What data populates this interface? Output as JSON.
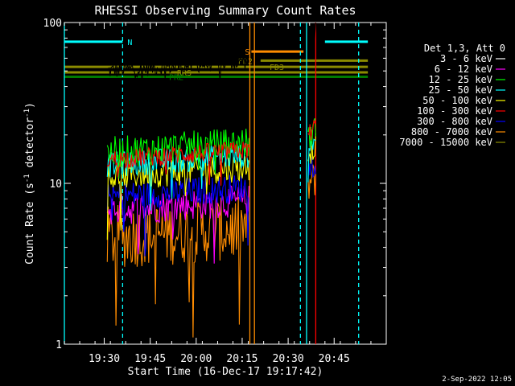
{
  "chart_data": {
    "type": "line",
    "title": "RHESSI Observing Summary Count Rates",
    "xlabel": "Start Time (16-Dec-17 19:17:42)",
    "ylabel_main": "Count Rate (s",
    "ylabel_sup": "-1",
    "ylabel_mid": " detector",
    "ylabel_sup2": "-1",
    "ylabel_end": ")",
    "x_range_min": [
      0,
      105
    ],
    "x_ticks": [
      {
        "min": 13,
        "label": "19:30"
      },
      {
        "min": 28,
        "label": "19:45"
      },
      {
        "min": 43,
        "label": "20:00"
      },
      {
        "min": 58,
        "label": "20:15"
      },
      {
        "min": 73,
        "label": "20:30"
      },
      {
        "min": 88,
        "label": "20:45"
      }
    ],
    "y_scale": "log",
    "y_range": [
      1,
      100
    ],
    "y_ticks": [
      {
        "v": 1,
        "label": "1"
      },
      {
        "v": 10,
        "label": "10"
      },
      {
        "v": 100,
        "label": "100"
      }
    ],
    "legend": {
      "placement": "right",
      "header": "Det 1,3, Att 0",
      "entries": [
        {
          "label": "3 - 6 keV",
          "color": "#000000"
        },
        {
          "label": "6 - 12 keV",
          "color": "#ff00ff"
        },
        {
          "label": "12 - 25 keV",
          "color": "#00ff00"
        },
        {
          "label": "25 - 50 keV",
          "color": "#00ffff"
        },
        {
          "label": "50 - 100 keV",
          "color": "#ffff00"
        },
        {
          "label": "100 - 300 keV",
          "color": "#ff0000"
        },
        {
          "label": "300 - 800 keV",
          "color": "#0000ff"
        },
        {
          "label": "800 - 7000 keV",
          "color": "#ff8c00"
        },
        {
          "label": "7000 - 15000 keV",
          "color": "#8b8b00"
        }
      ]
    },
    "flag_bars": [
      {
        "label": "N",
        "color": "#00ffff",
        "segments": [
          [
            0,
            19
          ],
          [
            85,
            99
          ]
        ],
        "y": 76
      },
      {
        "label": "S",
        "color": "#ff8c00",
        "segments": [
          [
            61,
            78
          ]
        ],
        "y": 66
      },
      {
        "label": "FD2",
        "color": "#8b8b00",
        "segments": [
          [
            64,
            99
          ]
        ],
        "y": 58
      },
      {
        "label": "FD3",
        "color": "#8b8b00",
        "segments": [
          [
            0,
            99
          ]
        ],
        "y": 53
      },
      {
        "label": "RRS",
        "color": "#8b8b00",
        "segments": [
          [
            0,
            99
          ]
        ],
        "y": 49
      },
      {
        "label": "PRE",
        "color": "#007a00",
        "segments": [
          [
            0,
            99
          ]
        ],
        "y": 46
      }
    ],
    "vlines": [
      {
        "min": 0,
        "color": "#00ffff",
        "style": "solid"
      },
      {
        "min": 19,
        "color": "#00ffff",
        "style": "dashed"
      },
      {
        "min": 60.5,
        "color": "#ff8c00",
        "style": "solid"
      },
      {
        "min": 62,
        "color": "#ff8c00",
        "style": "solid"
      },
      {
        "min": 77,
        "color": "#00ffff",
        "style": "dashed"
      },
      {
        "min": 79,
        "color": "#00ffff",
        "style": "solid"
      },
      {
        "min": 82,
        "color": "#ff0000",
        "style": "solid"
      },
      {
        "min": 96,
        "color": "#00ffff",
        "style": "dashed"
      }
    ],
    "series_segments": [
      {
        "color": "#000000",
        "segments": [
          [
            14,
            60.2,
            50,
            0.05
          ],
          [
            80,
            82,
            80,
            0.05
          ]
        ]
      },
      {
        "color": "#ff8c00",
        "segments": [
          [
            14,
            60.2,
            4.6,
            0.2
          ],
          [
            79.5,
            82,
            9.5,
            0.12
          ]
        ]
      },
      {
        "color": "#ff00ff",
        "segments": [
          [
            14,
            60.2,
            6.8,
            0.1
          ]
        ]
      },
      {
        "color": "#0000ff",
        "segments": [
          [
            14,
            60.2,
            8.2,
            0.09
          ],
          [
            79.5,
            82,
            12,
            0.08
          ]
        ]
      },
      {
        "color": "#ffff00",
        "segments": [
          [
            14,
            60.2,
            11,
            0.09
          ],
          [
            79.5,
            82,
            15,
            0.08
          ]
        ]
      },
      {
        "color": "#00ffff",
        "segments": [
          [
            14,
            60.2,
            13,
            0.08
          ],
          [
            79.5,
            82,
            17,
            0.08
          ]
        ]
      },
      {
        "color": "#00ff00",
        "segments": [
          [
            14,
            60.2,
            15.5,
            0.1
          ],
          [
            79.5,
            82,
            19,
            0.08
          ]
        ]
      },
      {
        "color": "#ff0000",
        "segments": [
          [
            14,
            60.2,
            14,
            0.06
          ],
          [
            79.5,
            82,
            20,
            0.06
          ]
        ]
      }
    ]
  },
  "footer": {
    "date": "2-Sep-2022 12:05"
  }
}
